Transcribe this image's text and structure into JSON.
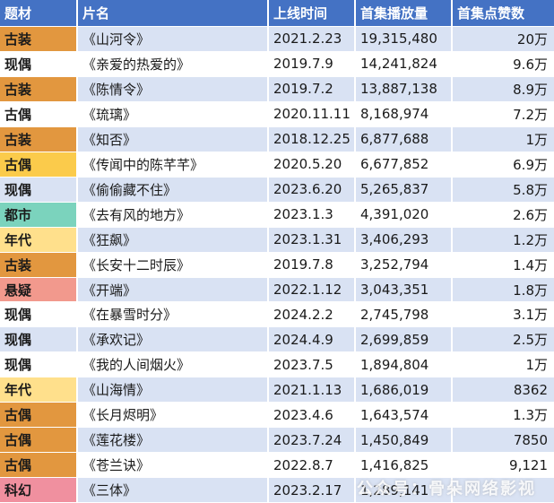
{
  "colors": {
    "header_bg": "#4472C4",
    "header_text": "#FFFFFF",
    "band": "#D9E2F3",
    "white": "#FFFFFF",
    "highlights": {
      "orange": "#E2973F",
      "yellow": "#FBCB4B",
      "teal": "#7BD3BD",
      "gold": "#FFE08C",
      "salmon": "#F2998D",
      "pink": "#F0909F"
    }
  },
  "watermark": {
    "text": "公众号：骨朵网络影视"
  },
  "chart_data": {
    "type": "table",
    "columns": [
      {
        "key": "genre",
        "label": "题材"
      },
      {
        "key": "title",
        "label": "片名"
      },
      {
        "key": "date",
        "label": "上线时间"
      },
      {
        "key": "views",
        "label": "首集播放量"
      },
      {
        "key": "likes",
        "label": "首集点赞数"
      }
    ],
    "rows": [
      {
        "genre": "古装",
        "highlight": "orange",
        "title": "《山河令》",
        "date": "2021.2.23",
        "views": "19,315,480",
        "likes": "20万"
      },
      {
        "genre": "现偶",
        "highlight": null,
        "title": "《亲爱的热爱的》",
        "date": "2019.7.9",
        "views": "14,241,824",
        "likes": "9.6万"
      },
      {
        "genre": "古装",
        "highlight": "orange",
        "title": "《陈情令》",
        "date": "2019.7.2",
        "views": "13,887,138",
        "likes": "8.9万"
      },
      {
        "genre": "古偶",
        "highlight": null,
        "title": "《琉璃》",
        "date": "2020.11.11",
        "views": "8,168,974",
        "likes": "7.2万"
      },
      {
        "genre": "古装",
        "highlight": "orange",
        "title": "《知否》",
        "date": "2018.12.25",
        "views": "6,877,688",
        "likes": "1万"
      },
      {
        "genre": "古偶",
        "highlight": "yellow",
        "title": "《传闻中的陈芊芊》",
        "date": "2020.5.20",
        "views": "6,677,852",
        "likes": "6.9万"
      },
      {
        "genre": "现偶",
        "highlight": null,
        "title": "《偷偷藏不住》",
        "date": "2023.6.20",
        "views": "5,265,837",
        "likes": "5.8万"
      },
      {
        "genre": "都市",
        "highlight": "teal",
        "title": "《去有风的地方》",
        "date": "2023.1.3",
        "views": "4,391,020",
        "likes": "2.6万"
      },
      {
        "genre": "年代",
        "highlight": "gold",
        "title": "《狂飙》",
        "date": "2023.1.31",
        "views": "3,406,293",
        "likes": "1.2万"
      },
      {
        "genre": "古装",
        "highlight": "orange",
        "title": "《长安十二时辰》",
        "date": "2019.7.8",
        "views": "3,252,794",
        "likes": "1.4万"
      },
      {
        "genre": "悬疑",
        "highlight": "salmon",
        "title": "《开端》",
        "date": "2022.1.12",
        "views": "3,043,351",
        "likes": "1.8万"
      },
      {
        "genre": "现偶",
        "highlight": null,
        "title": "《在暴雪时分》",
        "date": "2024.2.2",
        "views": "2,745,798",
        "likes": "3.1万"
      },
      {
        "genre": "现偶",
        "highlight": null,
        "title": "《承欢记》",
        "date": "2024.4.9",
        "views": "2,699,859",
        "likes": "2.5万"
      },
      {
        "genre": "现偶",
        "highlight": null,
        "title": "《我的人间烟火》",
        "date": "2023.7.5",
        "views": "1,894,804",
        "likes": "1万"
      },
      {
        "genre": "年代",
        "highlight": "gold",
        "title": "《山海情》",
        "date": "2021.1.13",
        "views": "1,686,019",
        "likes": "8362"
      },
      {
        "genre": "古偶",
        "highlight": "orange",
        "title": "《长月烬明》",
        "date": "2023.4.6",
        "views": "1,643,574",
        "likes": "1.3万"
      },
      {
        "genre": "古偶",
        "highlight": "orange",
        "title": "《莲花楼》",
        "date": "2023.7.24",
        "views": "1,450,849",
        "likes": "7850"
      },
      {
        "genre": "古偶",
        "highlight": "orange",
        "title": "《苍兰诀》",
        "date": "2022.8.7",
        "views": "1,416,825",
        "likes": "9,121"
      },
      {
        "genre": "科幻",
        "highlight": "pink",
        "title": "《三体》",
        "date": "2023.2.17",
        "views": "1,289,141",
        "likes": ""
      }
    ]
  }
}
